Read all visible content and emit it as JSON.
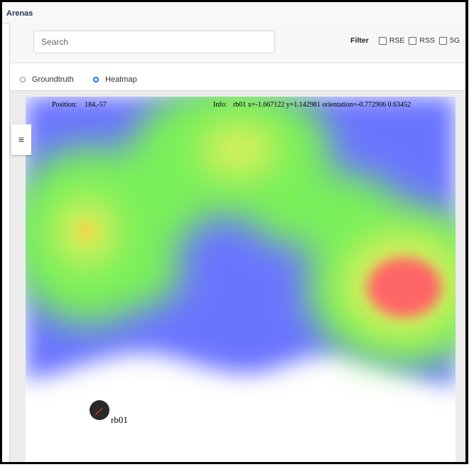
{
  "header": {
    "title": "Arenas"
  },
  "toolbar": {
    "search_placeholder": "Search",
    "filter_label": "Filter",
    "filter_options": [
      {
        "label": "RSE",
        "checked": false
      },
      {
        "label": "RSS",
        "checked": false
      },
      {
        "label": "5G",
        "checked": false
      }
    ]
  },
  "view_mode": {
    "options": [
      {
        "label": "Groundtruth",
        "selected": false
      },
      {
        "label": "Heatmap",
        "selected": true
      }
    ]
  },
  "arena": {
    "position_label": "Position:",
    "position_value": "184,-57",
    "info_label": "Info:",
    "info_value": "rb01 x=-1.667122 y=1.142981 orientation=-0.772906 0.63452",
    "menu_icon": "hamburger-icon",
    "robot": {
      "name": "rb01",
      "icon": "robot-marker-icon"
    }
  },
  "colors": {
    "heat_low": "#6a74ff",
    "heat_mid": "#79f05a",
    "heat_high": "#ff6666",
    "accent": "#1a73e8"
  }
}
